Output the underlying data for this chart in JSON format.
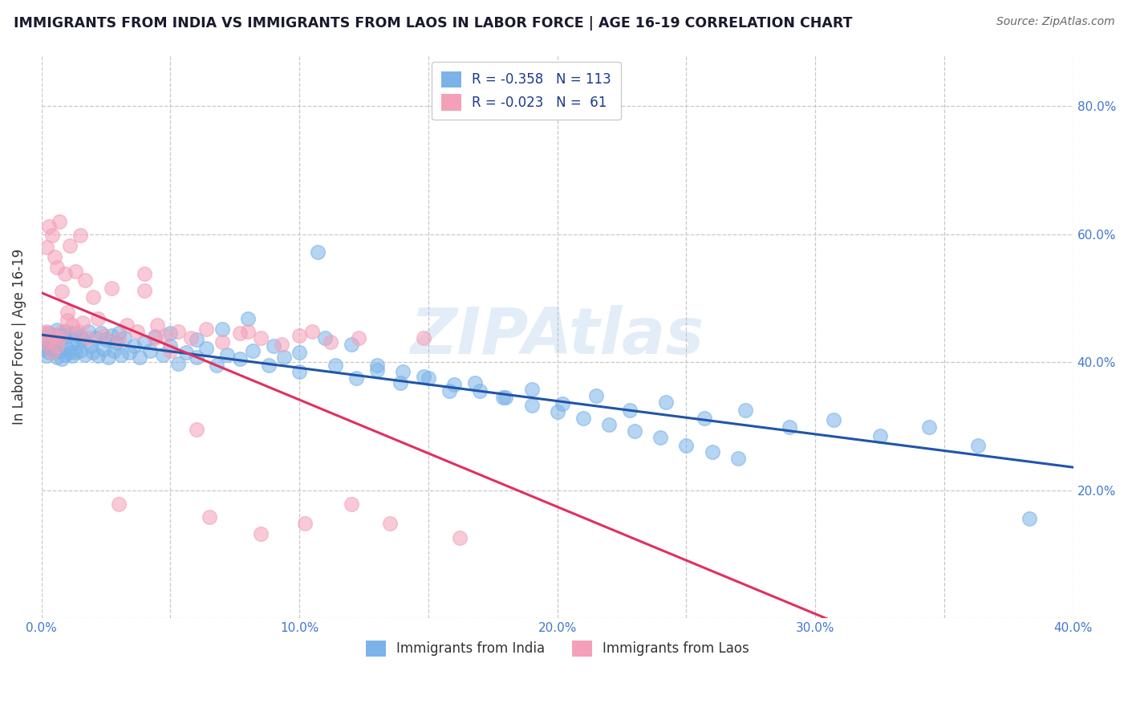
{
  "title": "IMMIGRANTS FROM INDIA VS IMMIGRANTS FROM LAOS IN LABOR FORCE | AGE 16-19 CORRELATION CHART",
  "source": "Source: ZipAtlas.com",
  "ylabel": "In Labor Force | Age 16-19",
  "xlim": [
    0.0,
    0.4
  ],
  "ylim": [
    0.0,
    0.88
  ],
  "xtick_vals": [
    0.0,
    0.05,
    0.1,
    0.15,
    0.2,
    0.25,
    0.3,
    0.35,
    0.4
  ],
  "xticklabels": [
    "0.0%",
    "",
    "10.0%",
    "",
    "20.0%",
    "",
    "30.0%",
    "",
    "40.0%"
  ],
  "yticks": [
    0.0,
    0.2,
    0.4,
    0.6,
    0.8
  ],
  "yticklabels_right": [
    "",
    "20.0%",
    "40.0%",
    "60.0%",
    "80.0%"
  ],
  "india_marker_color": "#7bb3e8",
  "laos_marker_color": "#f4a0b8",
  "india_line_color": "#2055a8",
  "laos_line_color": "#e03060",
  "legend_india_label": "R = -0.358   N = 113",
  "legend_laos_label": "R = -0.023   N =  61",
  "bottom_legend_india": "Immigrants from India",
  "bottom_legend_laos": "Immigrants from Laos",
  "watermark": "ZIPAtlas",
  "tick_label_color": "#4477cc",
  "india_x": [
    0.001,
    0.001,
    0.002,
    0.002,
    0.003,
    0.003,
    0.003,
    0.004,
    0.004,
    0.005,
    0.005,
    0.005,
    0.006,
    0.006,
    0.006,
    0.007,
    0.007,
    0.008,
    0.008,
    0.009,
    0.009,
    0.01,
    0.01,
    0.011,
    0.011,
    0.012,
    0.012,
    0.013,
    0.013,
    0.014,
    0.015,
    0.015,
    0.016,
    0.017,
    0.018,
    0.019,
    0.02,
    0.021,
    0.022,
    0.023,
    0.024,
    0.025,
    0.026,
    0.027,
    0.028,
    0.029,
    0.03,
    0.031,
    0.032,
    0.034,
    0.036,
    0.038,
    0.04,
    0.042,
    0.044,
    0.047,
    0.05,
    0.053,
    0.056,
    0.06,
    0.064,
    0.068,
    0.072,
    0.077,
    0.082,
    0.088,
    0.094,
    0.1,
    0.107,
    0.114,
    0.122,
    0.13,
    0.139,
    0.148,
    0.158,
    0.168,
    0.179,
    0.19,
    0.202,
    0.215,
    0.228,
    0.242,
    0.257,
    0.273,
    0.29,
    0.307,
    0.325,
    0.344,
    0.363,
    0.383,
    0.05,
    0.06,
    0.07,
    0.08,
    0.09,
    0.1,
    0.11,
    0.12,
    0.13,
    0.14,
    0.15,
    0.16,
    0.17,
    0.18,
    0.19,
    0.2,
    0.21,
    0.22,
    0.23,
    0.24,
    0.25,
    0.26,
    0.27
  ],
  "india_y": [
    0.435,
    0.42,
    0.44,
    0.41,
    0.445,
    0.425,
    0.415,
    0.438,
    0.422,
    0.442,
    0.415,
    0.43,
    0.45,
    0.408,
    0.435,
    0.418,
    0.442,
    0.405,
    0.438,
    0.412,
    0.448,
    0.42,
    0.44,
    0.415,
    0.445,
    0.43,
    0.41,
    0.445,
    0.415,
    0.432,
    0.44,
    0.418,
    0.435,
    0.412,
    0.448,
    0.425,
    0.415,
    0.438,
    0.41,
    0.445,
    0.42,
    0.435,
    0.408,
    0.442,
    0.418,
    0.43,
    0.445,
    0.412,
    0.438,
    0.415,
    0.425,
    0.408,
    0.432,
    0.418,
    0.44,
    0.412,
    0.425,
    0.398,
    0.415,
    0.408,
    0.422,
    0.395,
    0.412,
    0.405,
    0.418,
    0.395,
    0.408,
    0.385,
    0.572,
    0.395,
    0.375,
    0.388,
    0.368,
    0.378,
    0.355,
    0.368,
    0.345,
    0.358,
    0.335,
    0.348,
    0.325,
    0.338,
    0.312,
    0.325,
    0.298,
    0.31,
    0.285,
    0.298,
    0.27,
    0.155,
    0.445,
    0.435,
    0.452,
    0.468,
    0.425,
    0.415,
    0.438,
    0.428,
    0.395,
    0.385,
    0.375,
    0.365,
    0.355,
    0.345,
    0.332,
    0.322,
    0.312,
    0.302,
    0.292,
    0.282,
    0.27,
    0.26,
    0.25
  ],
  "laos_x": [
    0.001,
    0.001,
    0.002,
    0.002,
    0.003,
    0.003,
    0.004,
    0.004,
    0.005,
    0.005,
    0.006,
    0.006,
    0.007,
    0.007,
    0.008,
    0.008,
    0.009,
    0.01,
    0.01,
    0.011,
    0.012,
    0.013,
    0.014,
    0.015,
    0.016,
    0.017,
    0.018,
    0.02,
    0.022,
    0.024,
    0.027,
    0.03,
    0.033,
    0.037,
    0.04,
    0.044,
    0.048,
    0.053,
    0.058,
    0.064,
    0.07,
    0.077,
    0.085,
    0.093,
    0.102,
    0.112,
    0.123,
    0.135,
    0.148,
    0.162,
    0.04,
    0.06,
    0.08,
    0.1,
    0.12,
    0.045,
    0.065,
    0.085,
    0.105,
    0.03,
    0.05
  ],
  "laos_y": [
    0.445,
    0.43,
    0.58,
    0.448,
    0.612,
    0.435,
    0.598,
    0.415,
    0.565,
    0.44,
    0.548,
    0.425,
    0.62,
    0.438,
    0.51,
    0.448,
    0.538,
    0.465,
    0.478,
    0.582,
    0.458,
    0.542,
    0.448,
    0.598,
    0.462,
    0.528,
    0.438,
    0.502,
    0.468,
    0.442,
    0.515,
    0.435,
    0.458,
    0.448,
    0.512,
    0.438,
    0.442,
    0.448,
    0.438,
    0.452,
    0.432,
    0.445,
    0.438,
    0.428,
    0.148,
    0.432,
    0.438,
    0.148,
    0.438,
    0.125,
    0.538,
    0.295,
    0.448,
    0.442,
    0.178,
    0.458,
    0.158,
    0.132,
    0.448,
    0.178,
    0.418
  ]
}
